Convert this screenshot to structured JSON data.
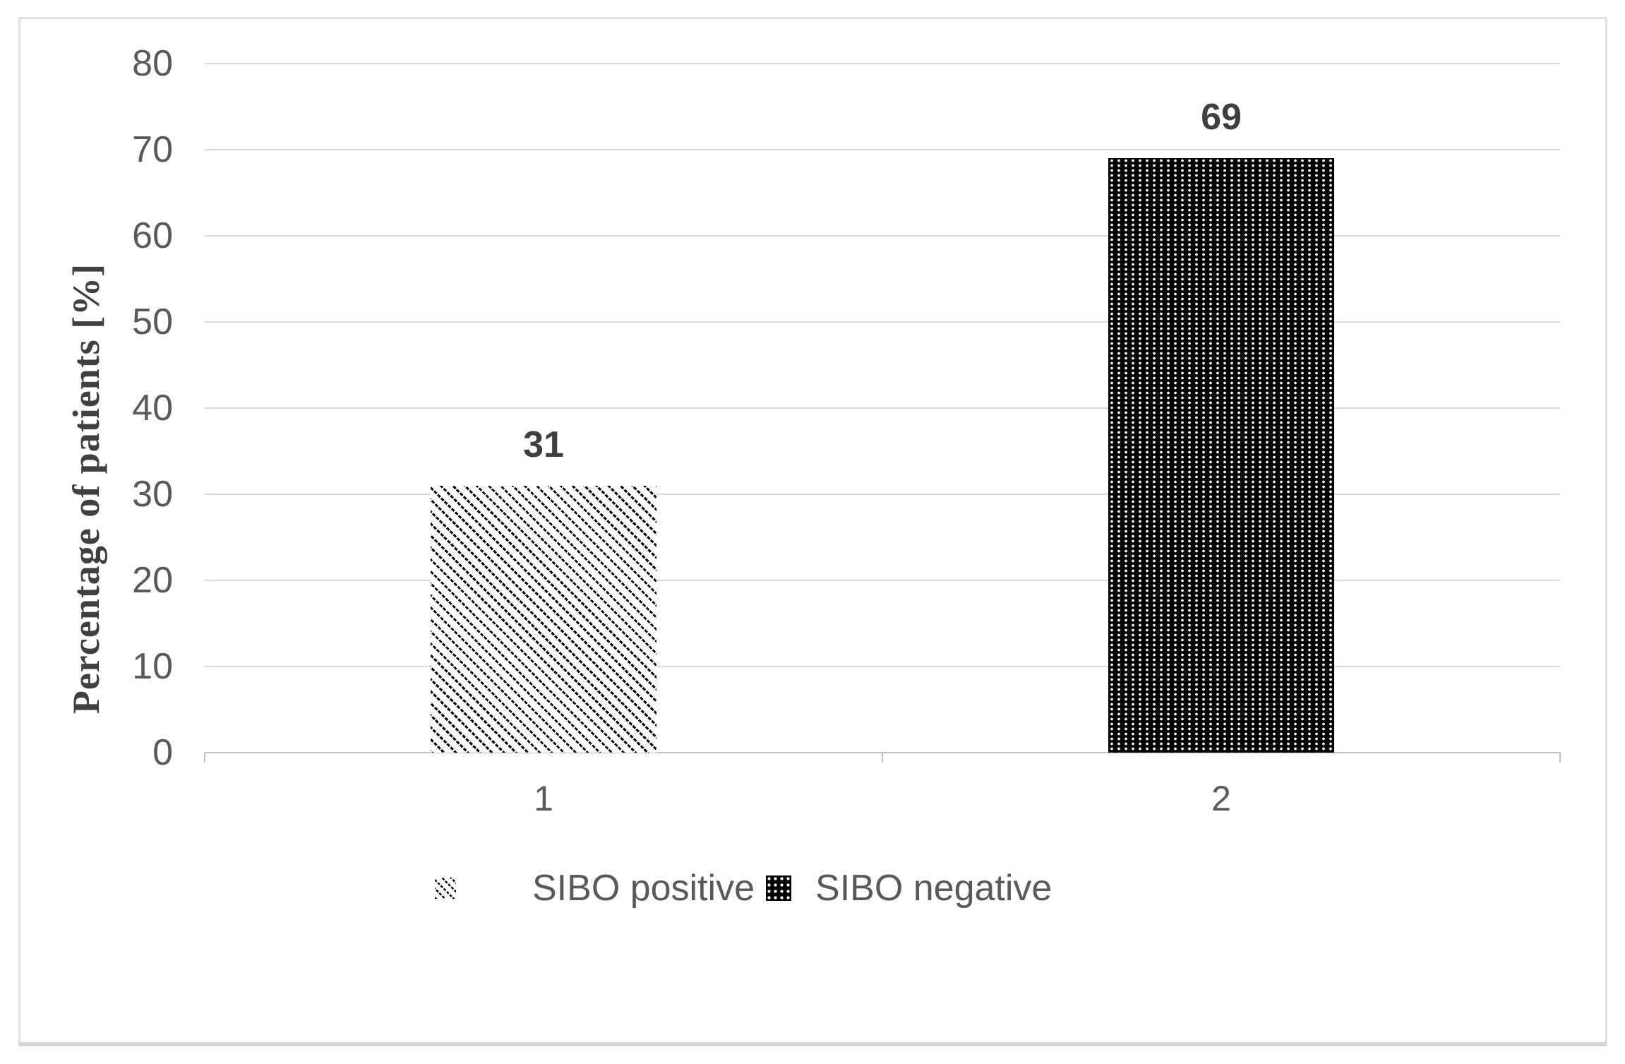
{
  "chart_data": {
    "type": "bar",
    "title": "",
    "categories": [
      "1",
      "2"
    ],
    "series": [
      {
        "name": "SIBO positive",
        "pattern": "dashed-diagonal-stripes",
        "values": [
          31,
          null
        ]
      },
      {
        "name": "SIBO negative",
        "pattern": "black-with-white-dots",
        "values": [
          null,
          69
        ]
      }
    ],
    "data_labels": [
      "31",
      "69"
    ],
    "xlabel": "",
    "ylabel": "Percentage of patients  [%]",
    "ylim": [
      0,
      80
    ],
    "yticks": [
      0,
      10,
      20,
      30,
      40,
      50,
      60,
      70,
      80
    ],
    "grid": true,
    "legend_position": "bottom-center",
    "colors": {
      "axis_text": "#595959",
      "data_label_text": "#3f3f3f",
      "gridline": "#d9d9d9",
      "axis_line": "#bfbfbf",
      "pattern_foreground": "#000000",
      "pattern_background": "#ffffff",
      "chart_border": "#e0e0e0"
    }
  }
}
